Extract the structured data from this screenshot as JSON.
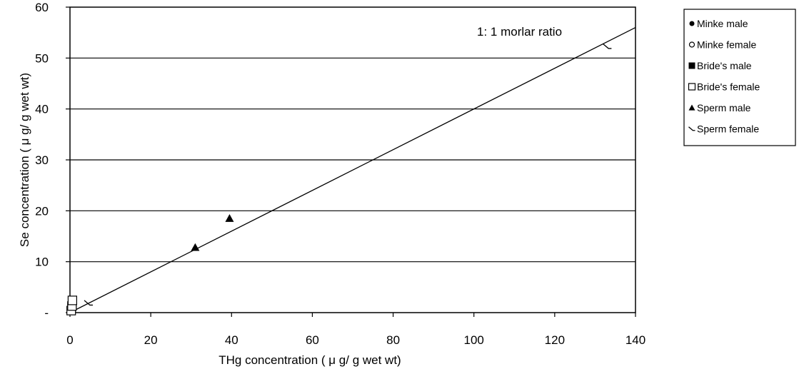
{
  "chart_data": {
    "type": "scatter",
    "xlabel": "THg concentration ( μ g/ g wet wt)",
    "ylabel": "Se concentration ( μ g/ g wet wt)",
    "xlim": [
      0,
      140
    ],
    "ylim": [
      0,
      60
    ],
    "x_ticks": [
      0,
      20,
      40,
      60,
      80,
      100,
      120,
      140
    ],
    "x_tick_labels": [
      "0",
      "20",
      "40",
      "60",
      "80",
      "100",
      "120",
      "140"
    ],
    "y_ticks": [
      0,
      10,
      20,
      30,
      40,
      50,
      60
    ],
    "y_tick_labels": [
      "-",
      "10",
      "20",
      "30",
      "40",
      "50",
      "60"
    ],
    "grid": "horizontal",
    "legend_position": "right",
    "series": [
      {
        "name": "Minke male",
        "marker": "filled-circle",
        "x": [
          0.4,
          0.6
        ],
        "y": [
          0.6,
          0.9
        ]
      },
      {
        "name": "Minke female",
        "marker": "open-circle",
        "x": [
          0.5,
          0.7
        ],
        "y": [
          0.8,
          1.1
        ]
      },
      {
        "name": "Bride's male",
        "marker": "filled-square",
        "x": [
          0.4,
          0.5
        ],
        "y": [
          0.9,
          1.2
        ]
      },
      {
        "name": "Bride's female",
        "marker": "open-square",
        "x": [
          0.3,
          0.5,
          0.6
        ],
        "y": [
          0.4,
          1.3,
          2.4
        ]
      },
      {
        "name": "Sperm male",
        "marker": "filled-triangle",
        "x": [
          31,
          39.5
        ],
        "y": [
          12.8,
          18.5
        ]
      },
      {
        "name": "Sperm female",
        "marker": "open-triangle",
        "x": [
          4.6,
          133
        ],
        "y": [
          1.9,
          52.3
        ]
      }
    ],
    "reference_line": {
      "label": "1: 1 morlar ratio",
      "slope": 0.4,
      "x": [
        0,
        140
      ]
    }
  }
}
